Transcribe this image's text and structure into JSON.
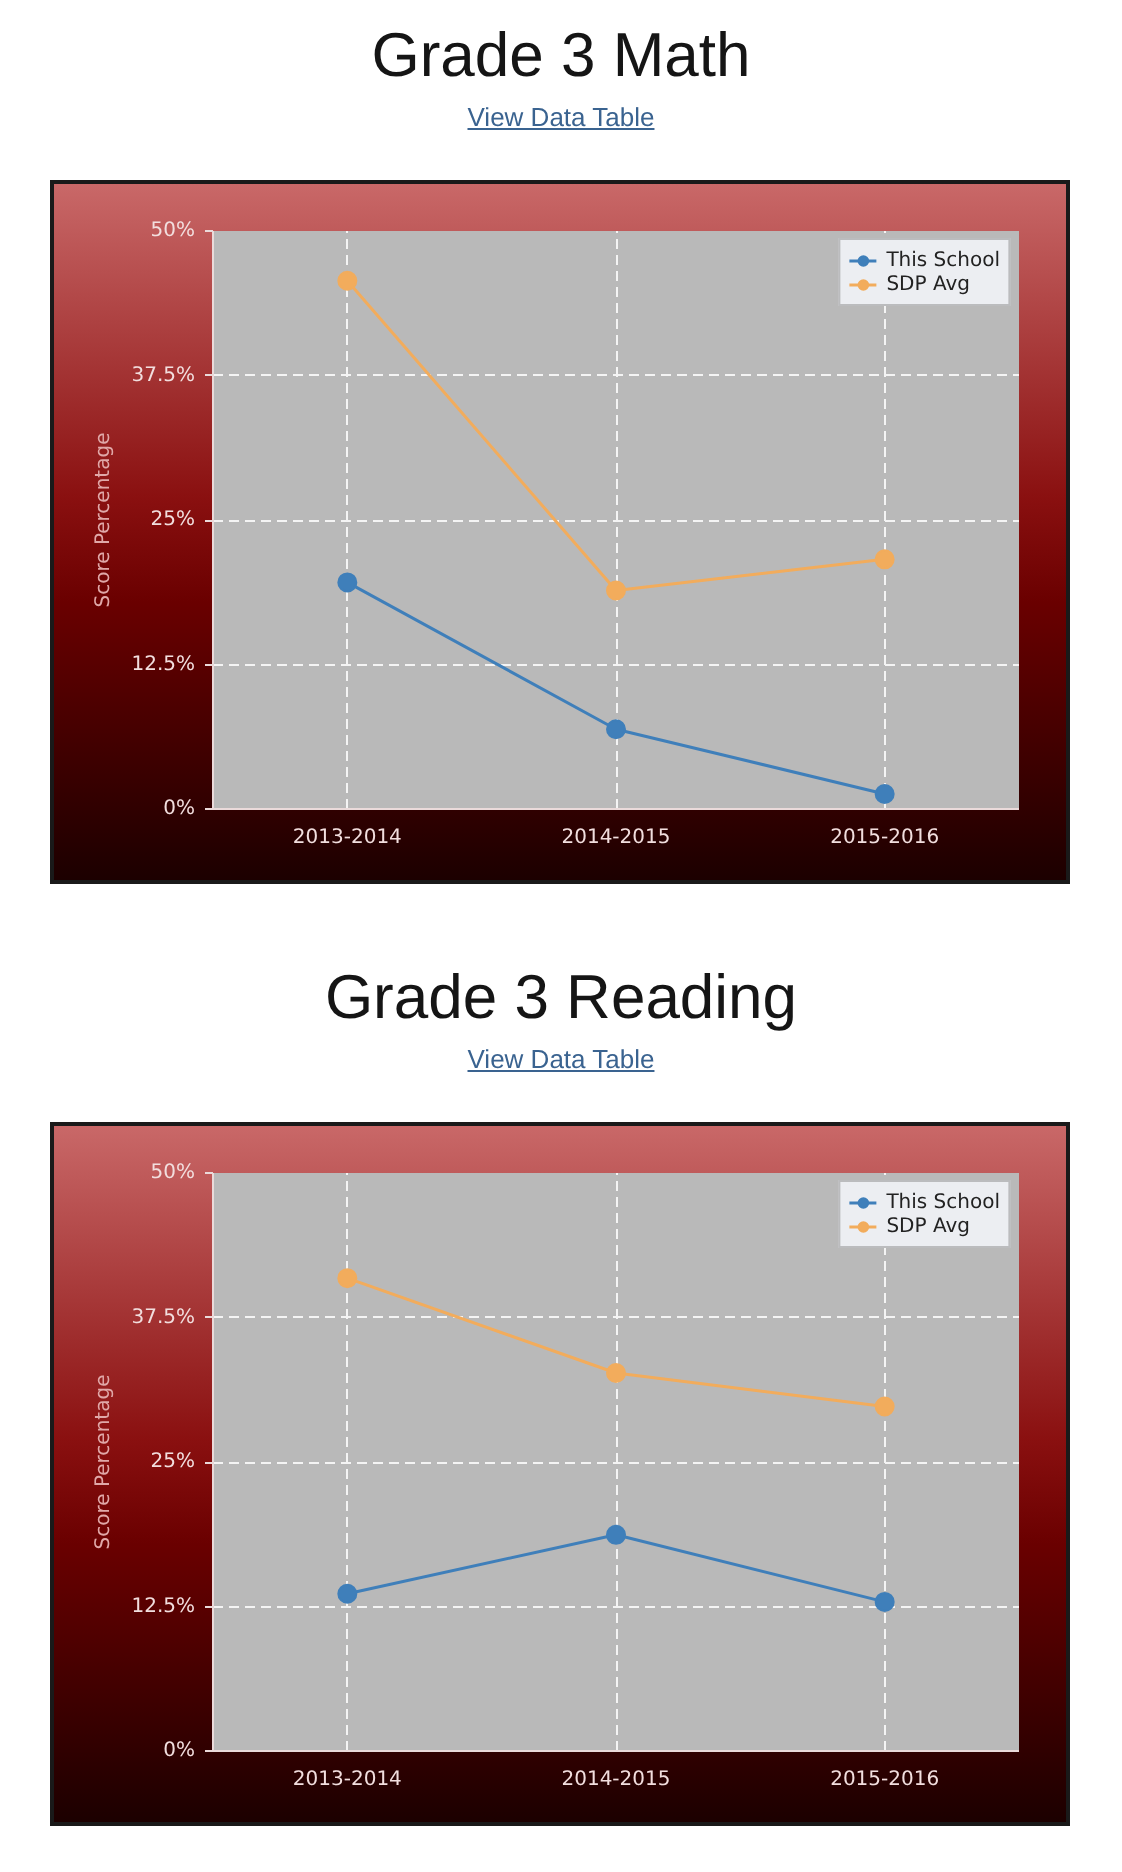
{
  "chart_data": [
    {
      "type": "line",
      "title": "Grade 3 Math",
      "subtitle": "View Data Table",
      "ylabel": "Score Percentage",
      "categories": [
        "2013-2014",
        "2014-2015",
        "2015-2016"
      ],
      "series": [
        {
          "name": "This School",
          "color": "#3f7fba",
          "values": [
            19.6,
            6.9,
            1.3
          ]
        },
        {
          "name": "SDP Avg",
          "color": "#f2ac5c",
          "values": [
            45.7,
            18.9,
            21.6
          ]
        }
      ],
      "ylim": [
        0,
        50
      ],
      "yticks": [
        {
          "value": 0,
          "label": "0%"
        },
        {
          "value": 12.5,
          "label": "12.5%"
        },
        {
          "value": 25,
          "label": "25%"
        },
        {
          "value": 37.5,
          "label": "37.5%"
        },
        {
          "value": 50,
          "label": "50%"
        }
      ],
      "grid": true,
      "legend": "top right",
      "marker": "circle",
      "line_style": "solid"
    },
    {
      "type": "line",
      "title": "Grade 3 Reading",
      "subtitle": "View Data Table",
      "ylabel": "Score Percentage",
      "categories": [
        "2013-2014",
        "2014-2015",
        "2015-2016"
      ],
      "series": [
        {
          "name": "This School",
          "color": "#3f7fba",
          "values": [
            13.6,
            18.7,
            12.9
          ]
        },
        {
          "name": "SDP Avg",
          "color": "#f2ac5c",
          "values": [
            40.9,
            32.7,
            29.8
          ]
        }
      ],
      "ylim": [
        0,
        50
      ],
      "yticks": [
        {
          "value": 0,
          "label": "0%"
        },
        {
          "value": 12.5,
          "label": "12.5%"
        },
        {
          "value": 25,
          "label": "25%"
        },
        {
          "value": 37.5,
          "label": "37.5%"
        },
        {
          "value": 50,
          "label": "50%"
        }
      ],
      "grid": true,
      "legend": "top right",
      "marker": "circle",
      "line_style": "solid"
    }
  ]
}
